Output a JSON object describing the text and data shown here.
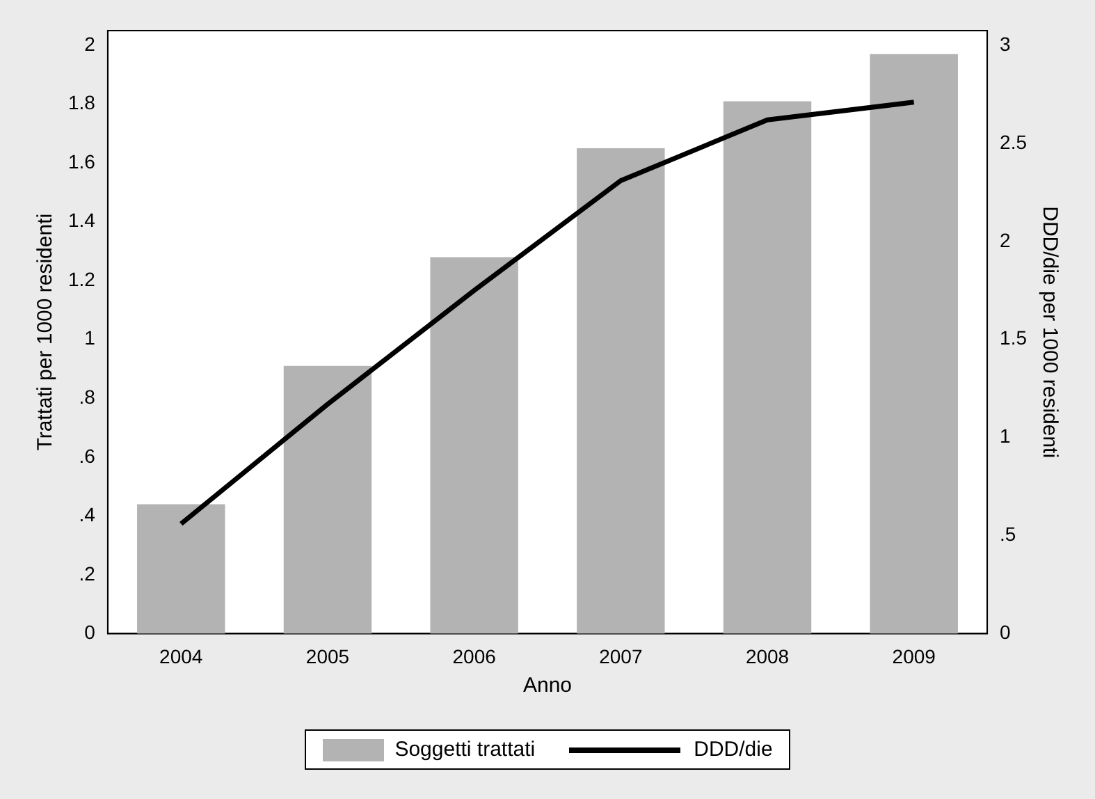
{
  "chart_data": {
    "type": "bar",
    "xlabel": "Anno",
    "ylabel": "Trattati per 1000 residenti",
    "y2label": "DDD/die per 1000 residenti",
    "categories": [
      "2004",
      "2005",
      "2006",
      "2007",
      "2008",
      "2009"
    ],
    "series": [
      {
        "name": "Soggetti trattati",
        "color": "#b3b3b3",
        "values": [
          0.44,
          0.91,
          1.28,
          1.65,
          1.81,
          1.97
        ]
      },
      {
        "name": "DDD/die",
        "type": "line",
        "axis": "y2",
        "color": "#000000",
        "values": [
          0.56,
          1.17,
          1.75,
          2.31,
          2.62,
          2.71
        ]
      }
    ],
    "ylim": [
      0,
      2.05
    ],
    "yticks": [
      0,
      {
        "value": 0.2,
        "label": ".2"
      },
      {
        "value": 0.4,
        "label": ".4"
      },
      {
        "value": 0.6,
        "label": ".6"
      },
      {
        "value": 0.8,
        "label": ".8"
      },
      1,
      1.2,
      1.4,
      1.6,
      1.8,
      2
    ],
    "y2lim": [
      0,
      3.075
    ],
    "y2ticks": [
      0,
      {
        "value": 0.5,
        "label": ".5"
      },
      1,
      1.5,
      2,
      2.5,
      3
    ],
    "grid": false,
    "legend": "bottom",
    "line_style": "solid"
  }
}
